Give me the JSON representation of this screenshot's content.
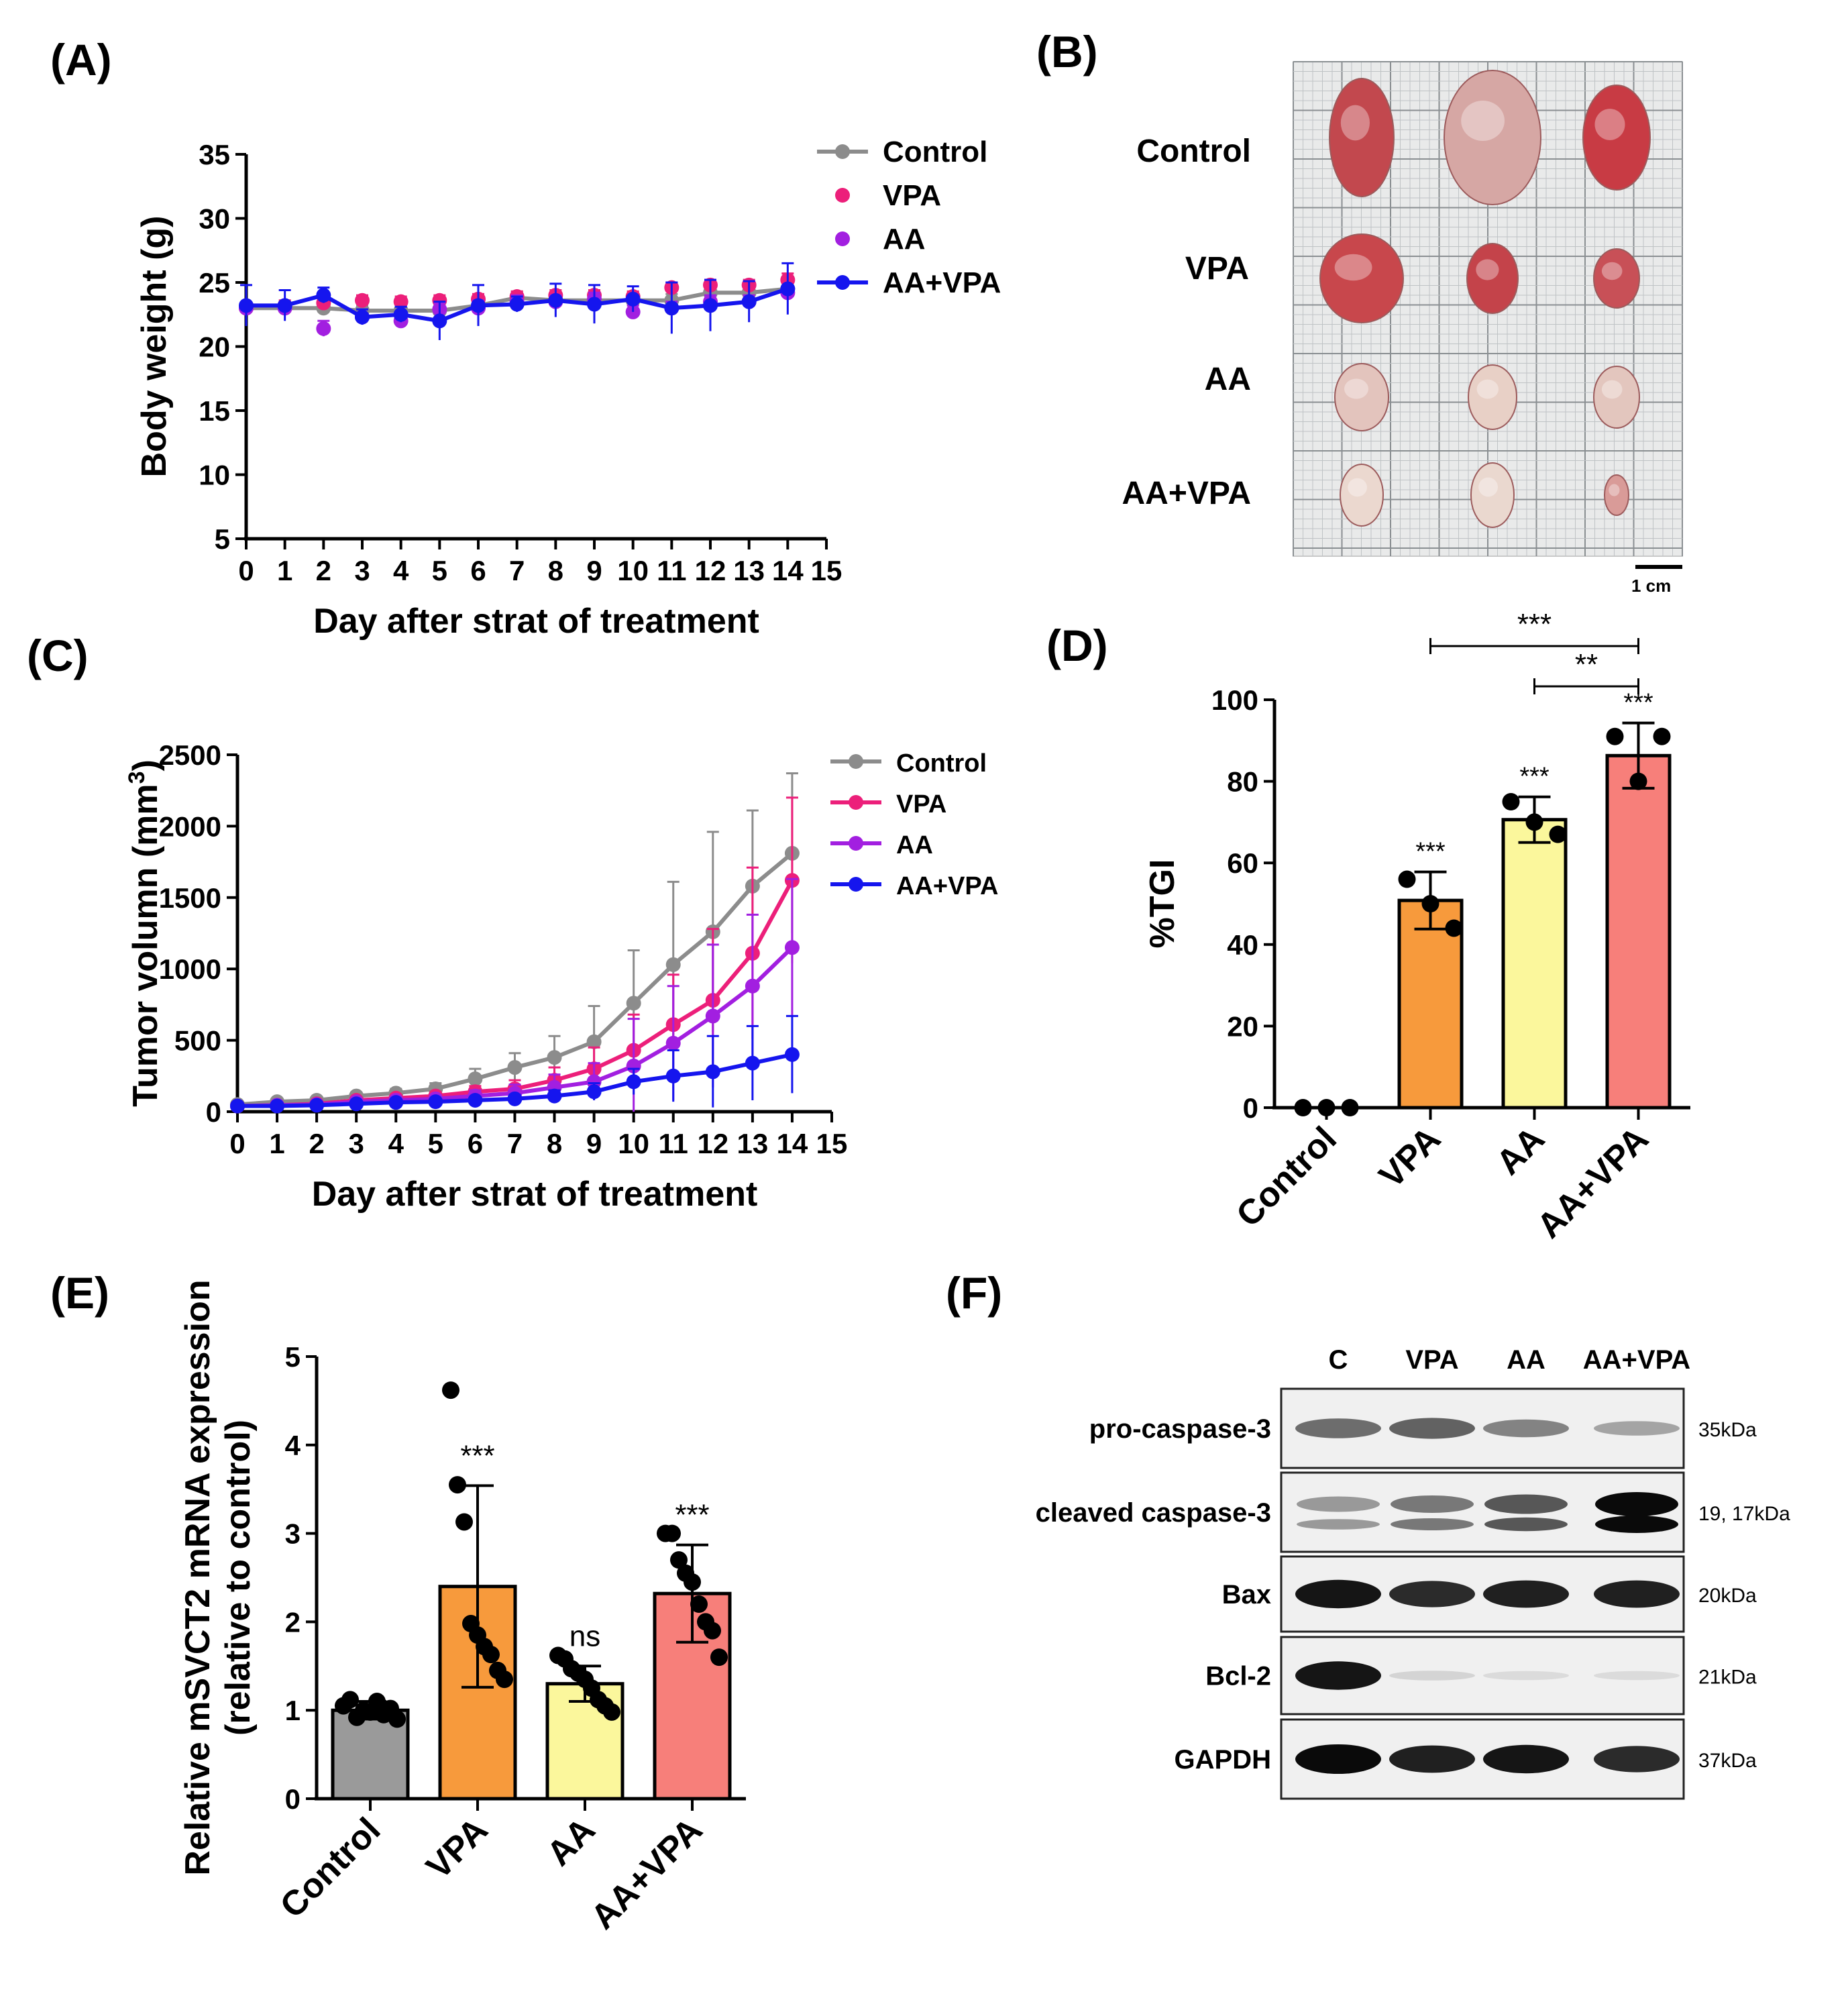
{
  "colors": {
    "control": "#8c8c8c",
    "vpa": "#ec1f7a",
    "aa": "#a21fe0",
    "aavpa": "#1515ee",
    "bar_control": "#9a9a9a",
    "bar_vpa": "#f79a3c",
    "bar_aa": "#fbf79c",
    "bar_aavpa": "#f77f7a"
  },
  "panels": {
    "A": "(A)",
    "B": "(B)",
    "C": "(C)",
    "D": "(D)",
    "E": "(E)",
    "F": "(F)"
  },
  "photo": {
    "rows": [
      "Control",
      "VPA",
      "AA",
      "AA+VPA"
    ],
    "scale_bar": "1 cm",
    "description_icon": "tumor-photo-icon"
  },
  "western": {
    "lanes": [
      "C",
      "VPA",
      "AA",
      "AA+VPA"
    ],
    "blots": [
      {
        "name": "pro-caspase-3",
        "kda": "35kDa",
        "intensity": [
          0.55,
          0.6,
          0.45,
          0.3
        ]
      },
      {
        "name": "cleaved caspase-3",
        "kda": "19, 17kDa",
        "intensity": [
          0.35,
          0.5,
          0.65,
          1.0
        ]
      },
      {
        "name": "Bax",
        "kda": "20kDa",
        "intensity": [
          0.95,
          0.85,
          0.9,
          0.9
        ]
      },
      {
        "name": "Bcl-2",
        "kda": "21kDa",
        "intensity": [
          0.95,
          0.08,
          0.05,
          0.05
        ]
      },
      {
        "name": "GAPDH",
        "kda": "37kDa",
        "intensity": [
          1.0,
          0.9,
          0.95,
          0.85
        ]
      }
    ]
  },
  "chart_data": [
    {
      "id": "A",
      "type": "line",
      "title": "",
      "xlabel": "Day after strat of treatment",
      "ylabel": "Body weight (g)",
      "xlim": [
        0,
        15
      ],
      "ylim": [
        5,
        35
      ],
      "xticks": [
        0,
        1,
        2,
        3,
        4,
        5,
        6,
        7,
        8,
        9,
        10,
        11,
        12,
        13,
        14,
        15
      ],
      "yticks": [
        5,
        10,
        15,
        20,
        25,
        30,
        35
      ],
      "legend_position": "top-right",
      "x": [
        0,
        1,
        2,
        3,
        4,
        5,
        6,
        7,
        8,
        9,
        10,
        11,
        12,
        13,
        14
      ],
      "series": [
        {
          "name": "Control",
          "color_key": "control",
          "style": "line",
          "values": [
            23.0,
            23.0,
            23.0,
            22.8,
            22.8,
            22.8,
            23.2,
            23.8,
            23.6,
            23.6,
            23.6,
            23.6,
            24.2,
            24.2,
            24.5
          ],
          "errors": [
            0.4,
            0.4,
            0.5,
            0.4,
            0.4,
            0.4,
            0.5,
            0.5,
            0.5,
            0.5,
            0.5,
            0.5,
            0.5,
            0.5,
            0.5
          ]
        },
        {
          "name": "VPA",
          "color_key": "vpa",
          "style": "points",
          "values": [
            23.0,
            23.2,
            23.4,
            23.6,
            23.5,
            23.6,
            23.7,
            23.9,
            24.0,
            24.0,
            23.9,
            24.6,
            24.8,
            24.8,
            25.2
          ],
          "errors": [
            0.4,
            0.4,
            0.4,
            0.4,
            0.4,
            0.4,
            0.4,
            0.4,
            0.4,
            0.4,
            0.4,
            0.4,
            0.4,
            0.4,
            0.5
          ]
        },
        {
          "name": "AA",
          "color_key": "aa",
          "style": "points",
          "values": [
            23.0,
            23.0,
            21.4,
            22.3,
            22.0,
            22.9,
            23.0,
            23.5,
            23.5,
            23.7,
            22.7,
            23.0,
            23.5,
            23.5,
            24.2
          ],
          "errors": [
            0.4,
            0.4,
            0.6,
            0.6,
            0.5,
            0.5,
            0.6,
            0.5,
            0.5,
            0.5,
            0.5,
            0.5,
            0.5,
            0.5,
            0.5
          ]
        },
        {
          "name": "AA+VPA",
          "color_key": "aavpa",
          "style": "line",
          "values": [
            23.2,
            23.2,
            24.0,
            22.3,
            22.5,
            22.0,
            23.2,
            23.3,
            23.6,
            23.3,
            23.7,
            23.0,
            23.2,
            23.5,
            24.5
          ],
          "errors": [
            1.6,
            1.2,
            0.6,
            0.6,
            0.6,
            1.5,
            1.6,
            0.6,
            1.3,
            1.5,
            1.0,
            2.0,
            2.0,
            1.6,
            2.0
          ]
        }
      ]
    },
    {
      "id": "C",
      "type": "line",
      "title": "",
      "xlabel": "Day after strat of treatment",
      "ylabel": "Tumor volumn (mm",
      "ylabel_superscript": "3",
      "ylabel_suffix": ")",
      "xlim": [
        0,
        15
      ],
      "ylim": [
        0,
        2500
      ],
      "xticks": [
        0,
        1,
        2,
        3,
        4,
        5,
        6,
        7,
        8,
        9,
        10,
        11,
        12,
        13,
        14,
        15
      ],
      "yticks": [
        0,
        500,
        1000,
        1500,
        2000,
        2500
      ],
      "legend_position": "top-right",
      "x": [
        0,
        1,
        2,
        3,
        4,
        5,
        6,
        7,
        8,
        9,
        10,
        11,
        12,
        13,
        14
      ],
      "series": [
        {
          "name": "Control",
          "color_key": "control",
          "values": [
            50,
            70,
            80,
            110,
            130,
            160,
            230,
            310,
            380,
            490,
            760,
            1030,
            1260,
            1580,
            1810
          ],
          "errors": [
            10,
            15,
            20,
            25,
            30,
            40,
            70,
            100,
            150,
            250,
            370,
            580,
            700,
            530,
            560
          ]
        },
        {
          "name": "VPA",
          "color_key": "vpa",
          "values": [
            40,
            45,
            55,
            80,
            95,
            110,
            140,
            160,
            220,
            300,
            430,
            610,
            780,
            1110,
            1620
          ],
          "errors": [
            10,
            10,
            15,
            20,
            25,
            30,
            40,
            60,
            90,
            150,
            250,
            350,
            500,
            600,
            580
          ]
        },
        {
          "name": "AA",
          "color_key": "aa",
          "values": [
            40,
            45,
            50,
            70,
            80,
            90,
            110,
            130,
            170,
            210,
            320,
            480,
            670,
            880,
            1150
          ],
          "errors": [
            10,
            10,
            15,
            20,
            20,
            25,
            40,
            60,
            90,
            130,
            330,
            400,
            500,
            500,
            480
          ]
        },
        {
          "name": "AA+VPA",
          "color_key": "aavpa",
          "values": [
            40,
            40,
            45,
            55,
            65,
            70,
            80,
            90,
            110,
            140,
            210,
            250,
            280,
            340,
            400
          ],
          "errors": [
            10,
            10,
            10,
            15,
            15,
            20,
            25,
            30,
            40,
            60,
            90,
            180,
            250,
            260,
            270
          ]
        }
      ]
    },
    {
      "id": "D",
      "type": "bar",
      "title": "",
      "xlabel": "",
      "ylabel": "%TGI",
      "ylim": [
        0,
        100
      ],
      "yticks": [
        0,
        20,
        40,
        60,
        80,
        100
      ],
      "categories": [
        "Control",
        "VPA",
        "AA",
        "AA+VPA"
      ],
      "color_keys": [
        "bar_control",
        "bar_vpa",
        "bar_aa",
        "bar_aavpa"
      ],
      "values": [
        0,
        50.8,
        70.6,
        86.3
      ],
      "errors": [
        0,
        7.0,
        5.6,
        8.0
      ],
      "points": [
        [
          0,
          0,
          0
        ],
        [
          56,
          50,
          44
        ],
        [
          75,
          70,
          67
        ],
        [
          91,
          80,
          91
        ]
      ],
      "significance": [
        "",
        "***",
        "***",
        "***"
      ],
      "brackets": [
        {
          "from": 1,
          "to": 3,
          "label": "***"
        },
        {
          "from": 2,
          "to": 3,
          "label": "**"
        }
      ]
    },
    {
      "id": "E",
      "type": "bar",
      "title": "",
      "xlabel": "",
      "ylabel": "Relative mSVCT2 mRNA expression",
      "ylabel2": "(relative to control)",
      "ylim": [
        0,
        5
      ],
      "yticks": [
        0,
        1,
        2,
        3,
        4,
        5
      ],
      "categories": [
        "Control",
        "VPA",
        "AA",
        "AA+VPA"
      ],
      "color_keys": [
        "bar_control",
        "bar_vpa",
        "bar_aa",
        "bar_aavpa"
      ],
      "values": [
        1.0,
        2.4,
        1.3,
        2.32
      ],
      "errors": [
        0.1,
        1.14,
        0.2,
        0.55
      ],
      "points": [
        [
          1.05,
          1.12,
          0.92,
          1.0,
          0.98,
          1.1,
          0.95,
          1.02,
          0.9
        ],
        [
          4.62,
          3.55,
          3.13,
          1.98,
          1.85,
          1.72,
          1.63,
          1.45,
          1.35
        ],
        [
          1.62,
          1.58,
          1.47,
          1.42,
          1.35,
          1.25,
          1.12,
          1.05,
          0.98
        ],
        [
          3.0,
          3.0,
          2.7,
          2.55,
          2.45,
          2.2,
          2.0,
          1.9,
          1.6
        ]
      ],
      "significance": [
        "",
        "***",
        "ns",
        "***"
      ]
    }
  ]
}
